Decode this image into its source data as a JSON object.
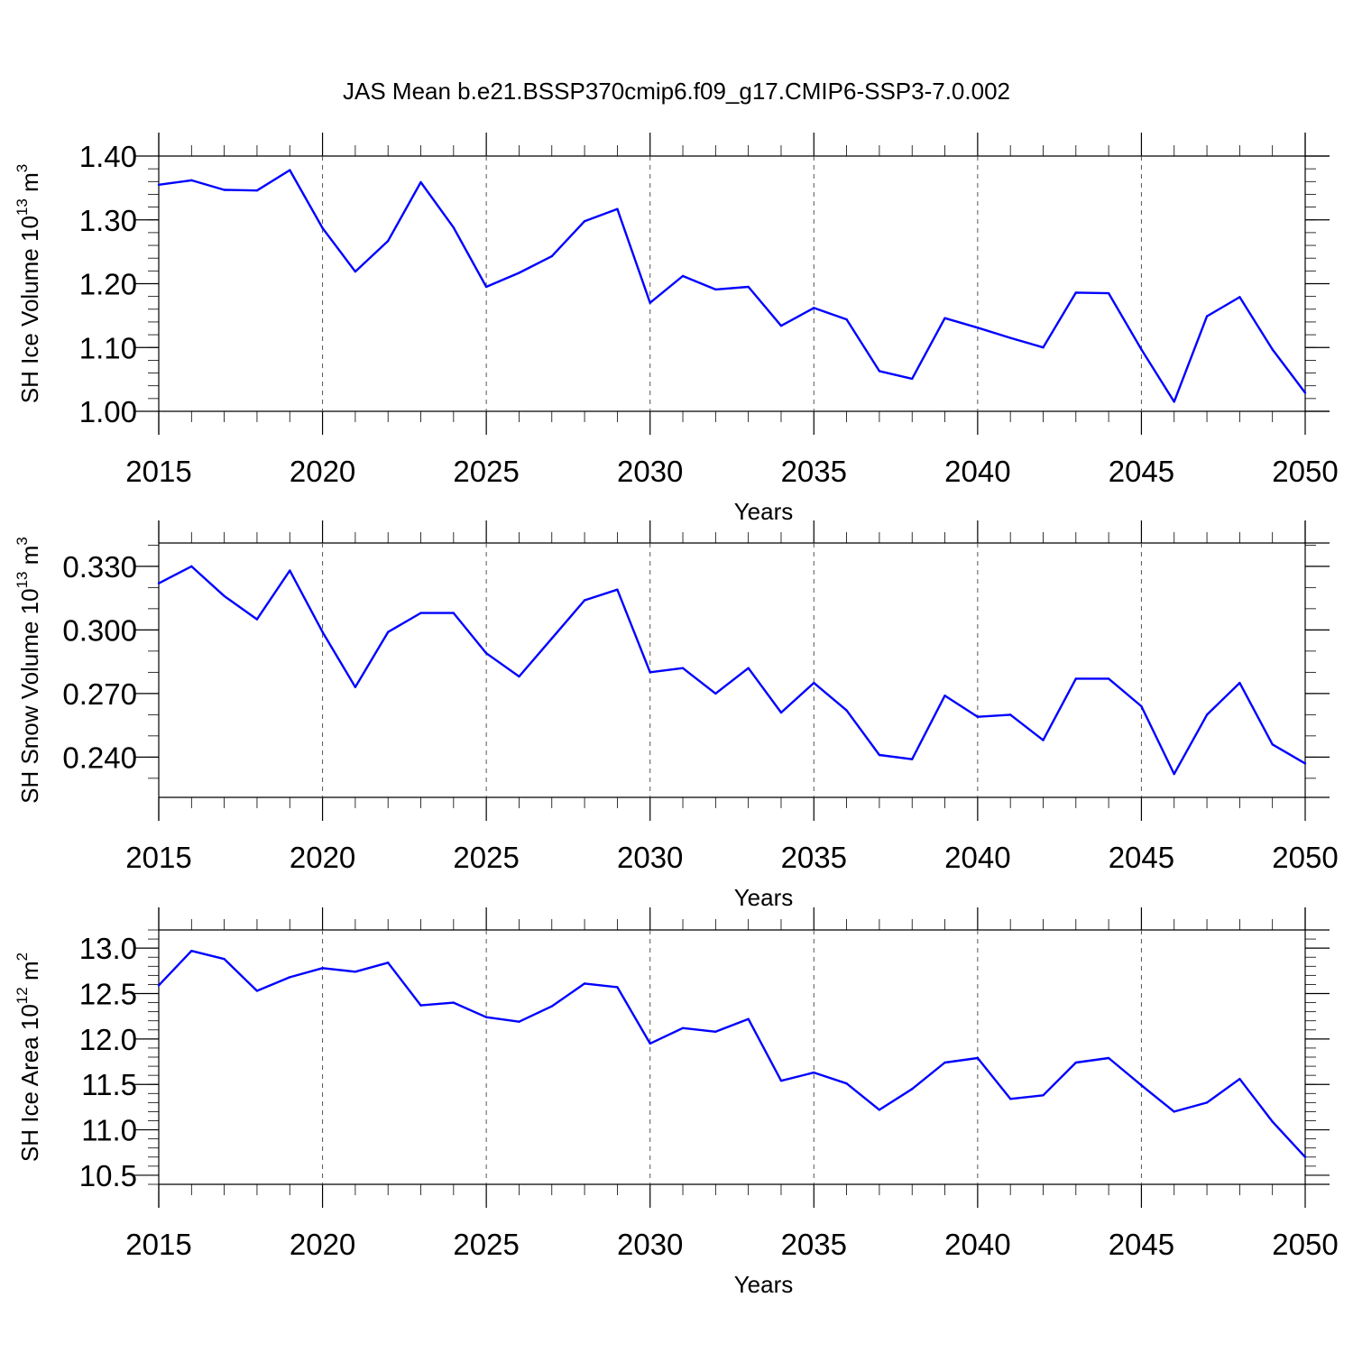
{
  "figure_title": "JAS Mean b.e21.BSSP370cmip6.f09_g17.CMIP6-SSP3-7.0.002",
  "colors": {
    "series": "#0000ff",
    "axes": "#000000",
    "grid": "#555555"
  },
  "chart_data": [
    {
      "type": "line",
      "ylabel": {
        "text": "SH Ice Volume 10",
        "exp": "13",
        "unit": " m",
        "unit_exp": "3"
      },
      "xlabel": "Years",
      "xlim": [
        2015,
        2050
      ],
      "ylim": [
        1.0,
        1.4
      ],
      "xticks": [
        "2015",
        "2020",
        "2025",
        "2030",
        "2035",
        "2040",
        "2045",
        "2050"
      ],
      "yticks": [
        "1.00",
        "1.10",
        "1.20",
        "1.30",
        "1.40"
      ],
      "grid": "vertical dashed at major x ticks",
      "x": [
        2015,
        2016,
        2017,
        2018,
        2019,
        2020,
        2021,
        2022,
        2023,
        2024,
        2025,
        2026,
        2027,
        2028,
        2029,
        2030,
        2031,
        2032,
        2033,
        2034,
        2035,
        2036,
        2037,
        2038,
        2039,
        2040,
        2041,
        2042,
        2043,
        2044,
        2045,
        2046,
        2047,
        2048,
        2049,
        2050
      ],
      "series": [
        {
          "values": [
            1.355,
            1.362,
            1.347,
            1.346,
            1.378,
            1.287,
            1.219,
            1.267,
            1.359,
            1.288,
            1.195,
            1.217,
            1.243,
            1.298,
            1.317,
            1.17,
            1.212,
            1.191,
            1.195,
            1.134,
            1.162,
            1.144,
            1.063,
            1.051,
            1.146,
            1.131,
            1.115,
            1.1,
            1.186,
            1.185,
            1.097,
            1.015,
            1.149,
            1.179,
            1.097,
            1.029
          ]
        }
      ]
    },
    {
      "type": "line",
      "ylabel": {
        "text": "SH Snow Volume 10",
        "exp": "13",
        "unit": " m",
        "unit_exp": "3"
      },
      "xlabel": "Years",
      "xlim": [
        2015,
        2050
      ],
      "ylim": [
        0.221,
        0.341
      ],
      "xticks": [
        "2015",
        "2020",
        "2025",
        "2030",
        "2035",
        "2040",
        "2045",
        "2050"
      ],
      "yticks": [
        "0.240",
        "0.270",
        "0.300",
        "0.330"
      ],
      "grid": "vertical dashed at major x ticks",
      "x": [
        2015,
        2016,
        2017,
        2018,
        2019,
        2020,
        2021,
        2022,
        2023,
        2024,
        2025,
        2026,
        2027,
        2028,
        2029,
        2030,
        2031,
        2032,
        2033,
        2034,
        2035,
        2036,
        2037,
        2038,
        2039,
        2040,
        2041,
        2042,
        2043,
        2044,
        2045,
        2046,
        2047,
        2048,
        2049,
        2050
      ],
      "series": [
        {
          "values": [
            0.322,
            0.33,
            0.316,
            0.305,
            0.328,
            0.299,
            0.273,
            0.299,
            0.308,
            0.308,
            0.289,
            0.278,
            0.296,
            0.314,
            0.319,
            0.28,
            0.282,
            0.27,
            0.282,
            0.261,
            0.275,
            0.262,
            0.241,
            0.239,
            0.269,
            0.259,
            0.26,
            0.248,
            0.277,
            0.277,
            0.264,
            0.232,
            0.26,
            0.275,
            0.246,
            0.237
          ]
        }
      ]
    },
    {
      "type": "line",
      "ylabel": {
        "text": "SH Ice Area 10",
        "exp": "12",
        "unit": " m",
        "unit_exp": "2"
      },
      "xlabel": "Years",
      "xlim": [
        2015,
        2050
      ],
      "ylim": [
        10.4,
        13.2
      ],
      "xticks": [
        "2015",
        "2020",
        "2025",
        "2030",
        "2035",
        "2040",
        "2045",
        "2050"
      ],
      "yticks": [
        "10.5",
        "11.0",
        "11.5",
        "12.0",
        "12.5",
        "13.0"
      ],
      "grid": "vertical dashed at major x ticks",
      "x": [
        2015,
        2016,
        2017,
        2018,
        2019,
        2020,
        2021,
        2022,
        2023,
        2024,
        2025,
        2026,
        2027,
        2028,
        2029,
        2030,
        2031,
        2032,
        2033,
        2034,
        2035,
        2036,
        2037,
        2038,
        2039,
        2040,
        2041,
        2042,
        2043,
        2044,
        2045,
        2046,
        2047,
        2048,
        2049,
        2050
      ],
      "series": [
        {
          "values": [
            12.59,
            12.97,
            12.88,
            12.53,
            12.68,
            12.78,
            12.74,
            12.84,
            12.37,
            12.4,
            12.24,
            12.19,
            12.36,
            12.61,
            12.57,
            11.95,
            12.12,
            12.08,
            12.22,
            11.54,
            11.63,
            11.51,
            11.22,
            11.45,
            11.74,
            11.79,
            11.34,
            11.38,
            11.74,
            11.79,
            11.49,
            11.2,
            11.3,
            11.56,
            11.09,
            10.7
          ]
        }
      ]
    }
  ]
}
